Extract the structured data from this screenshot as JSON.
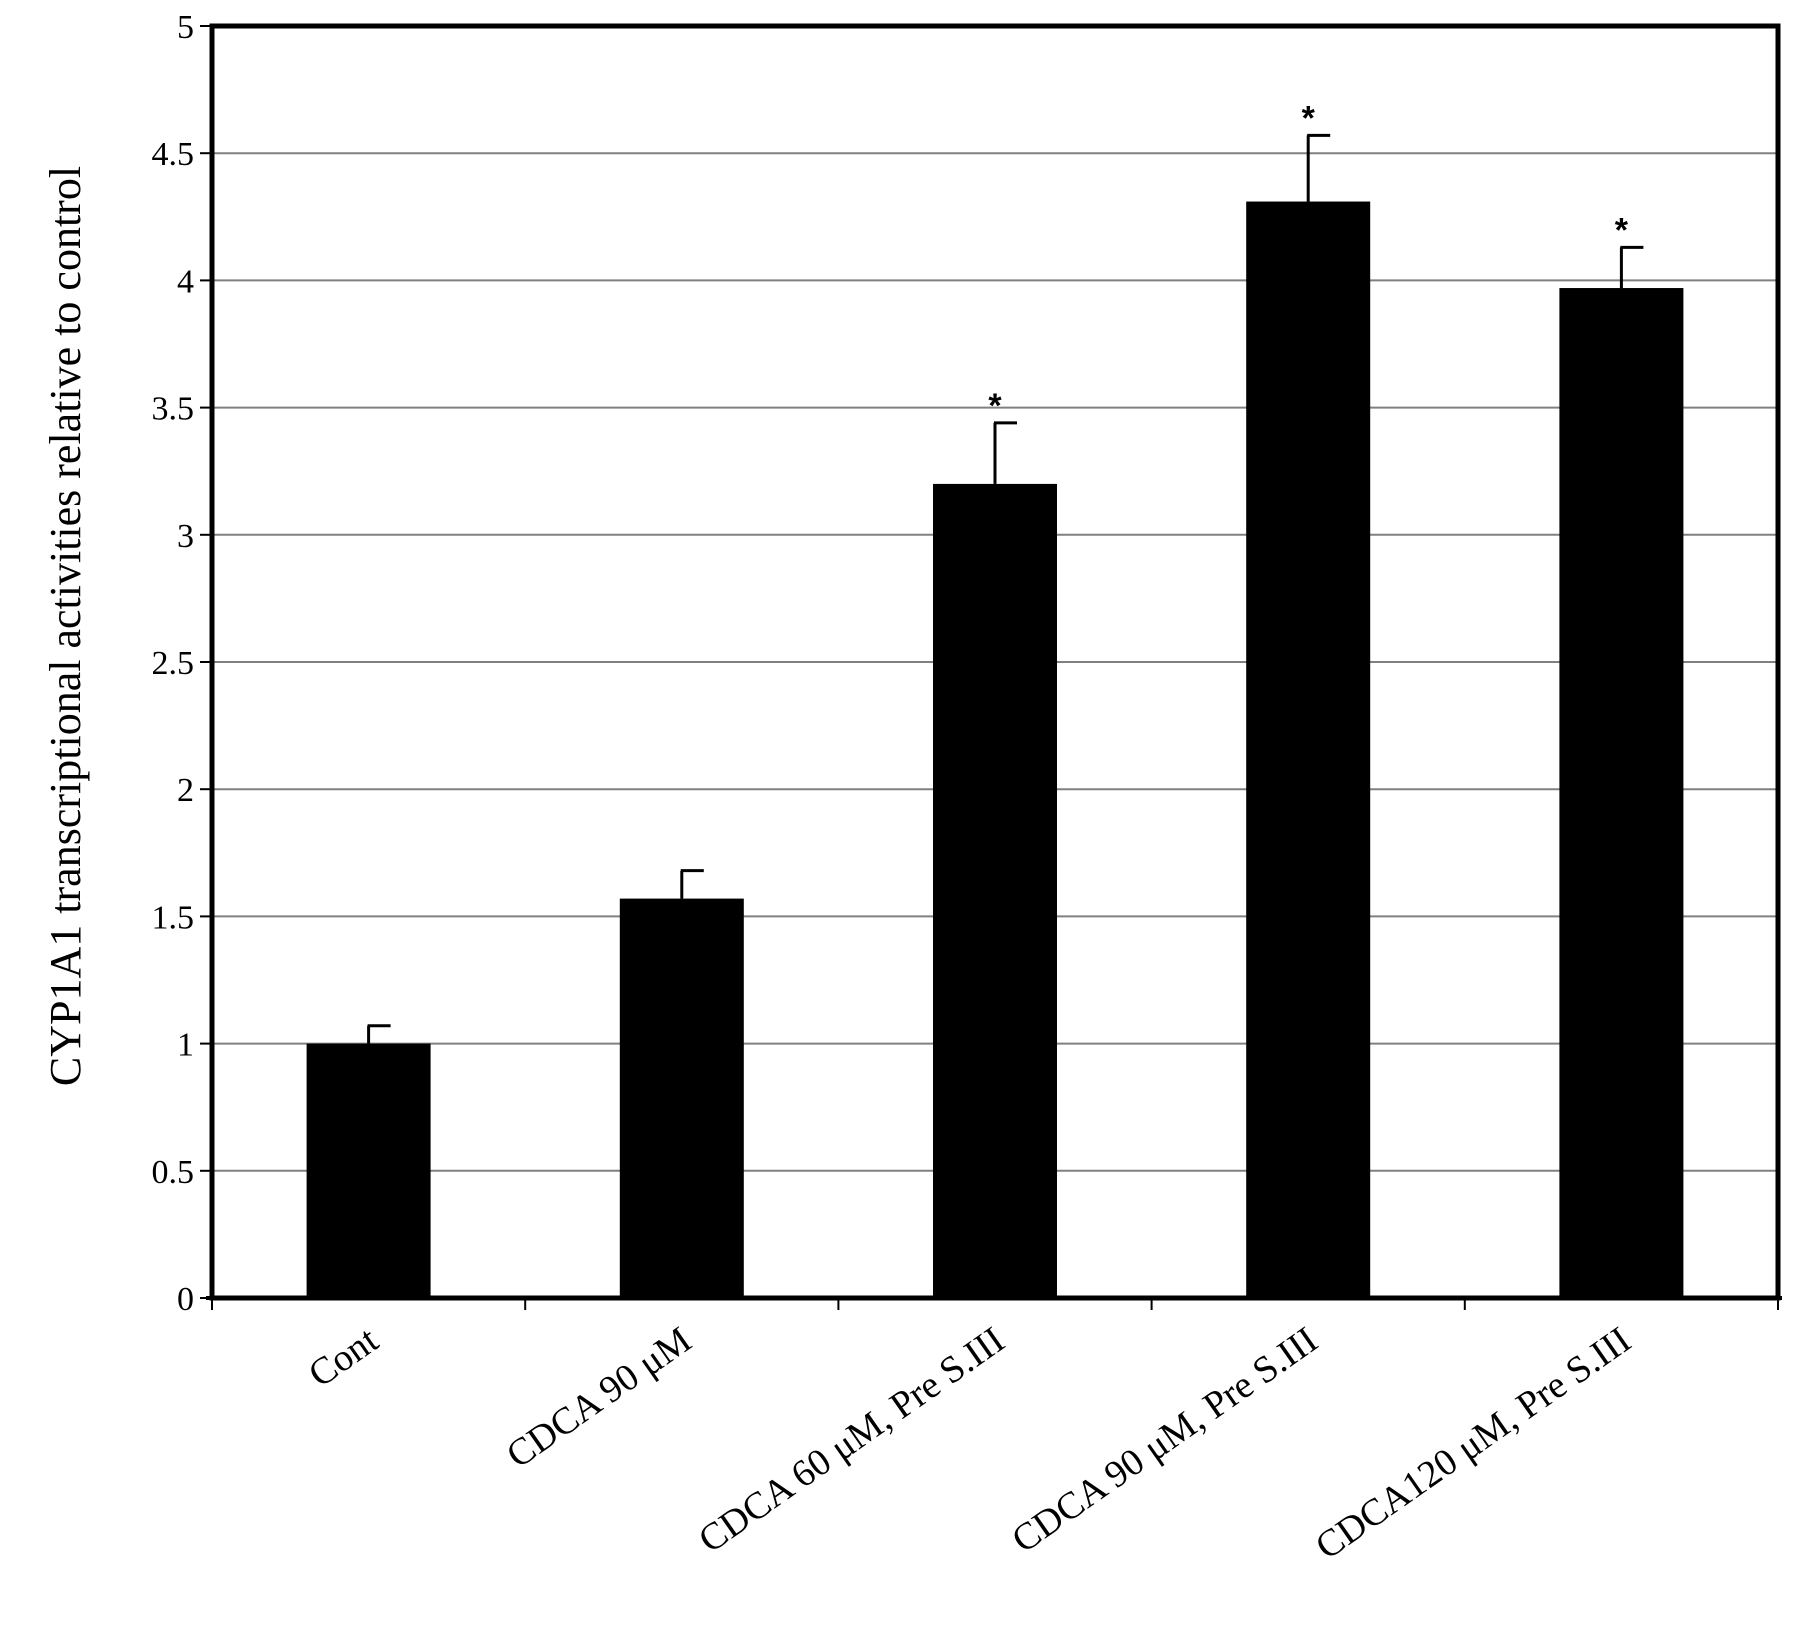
{
  "chart_data": {
    "type": "bar",
    "title": "",
    "xlabel": "",
    "ylabel": "CYP1A1 transcriptional activities relative to control",
    "ylim": [
      0,
      5
    ],
    "yticks": [
      0,
      0.5,
      1,
      1.5,
      2,
      2.5,
      3,
      3.5,
      4,
      4.5,
      5
    ],
    "ytick_labels": [
      "0",
      "0.5",
      "1",
      "1.5",
      "2",
      "2.5",
      "3",
      "3.5",
      "4",
      "4.5",
      "5"
    ],
    "grid": true,
    "categories": [
      "Cont",
      "CDCA 90 μM",
      "CDCA 60 μM, Pre S.III",
      "CDCA 90 μM, Pre S.III",
      "CDCA120 μM, Pre S.III"
    ],
    "values": [
      1.0,
      1.57,
      3.2,
      4.31,
      3.97
    ],
    "errors": [
      0.07,
      0.11,
      0.24,
      0.26,
      0.16
    ],
    "annotations": [
      "",
      "",
      "*",
      "*",
      "*"
    ],
    "colors": {
      "bar": "#000000",
      "grid": "#808080",
      "axis": "#000000"
    }
  }
}
